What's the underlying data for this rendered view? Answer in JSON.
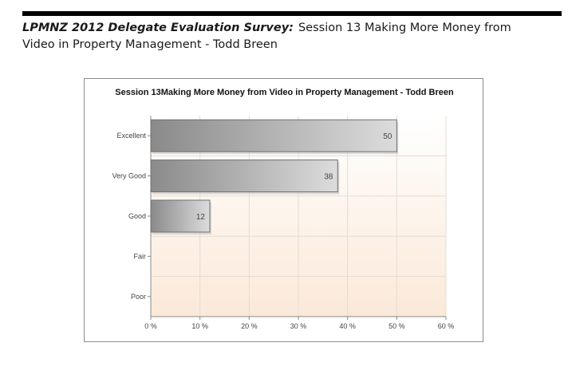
{
  "page": {
    "heading_lead": "LPMNZ 2012 Delegate Evaluation Survey:",
    "heading_rest": "Session 13 Making More Money from Video in Property Management - Todd Breen"
  },
  "chart_data": {
    "type": "bar",
    "orientation": "horizontal",
    "title": "Session 13Making More Money from Video in Property Management - Todd Breen",
    "categories": [
      "Excellent",
      "Very Good",
      "Good",
      "Fair",
      "Poor"
    ],
    "values": [
      50,
      38,
      12,
      0,
      0
    ],
    "data_labels": [
      "50",
      "38",
      "12",
      "",
      ""
    ],
    "xlim": [
      0,
      60
    ],
    "x_ticks": [
      0,
      10,
      20,
      30,
      40,
      50,
      60
    ],
    "x_tick_labels": [
      "0 %",
      "10 %",
      "20 %",
      "30 %",
      "40 %",
      "50 %",
      "60 %"
    ],
    "xlabel": "",
    "ylabel": "",
    "grid": true,
    "legend": "none",
    "colors": {
      "bar_dark": "#8a8a8a",
      "bar_light": "#dcdcdc",
      "bar_stroke": "#6f6f6f",
      "plot_bg_top": "#ffffff",
      "plot_bg_bottom": "#fbe9d8",
      "grid": "#e4dcd4"
    }
  }
}
